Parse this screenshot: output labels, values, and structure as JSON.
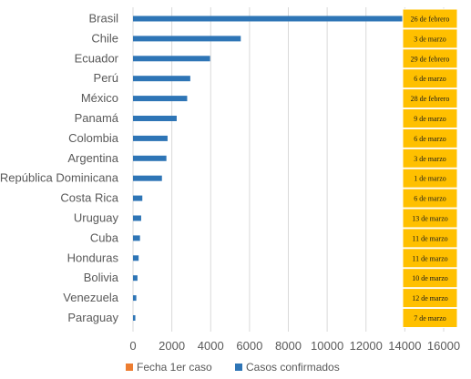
{
  "chart_data": {
    "type": "bar",
    "orientation": "horizontal",
    "categories": [
      "Brasil",
      "Chile",
      "Ecuador",
      "Perú",
      "México",
      "Panamá",
      "Colombia",
      "Argentina",
      "República Dominicana",
      "Costa Rica",
      "Uruguay",
      "Cuba",
      "Honduras",
      "Bolivia",
      "Venezuela",
      "Paraguay"
    ],
    "series": [
      {
        "name": "Casos confirmados",
        "color": "#2e75b6",
        "values": [
          14100,
          5550,
          3970,
          2950,
          2790,
          2250,
          1780,
          1720,
          1490,
          480,
          420,
          360,
          290,
          230,
          170,
          120
        ]
      },
      {
        "name": "Fecha 1er caso",
        "color": "#ed7d31",
        "cell_fill": "#ffc000",
        "values": [
          "26 de febrero",
          "3 de marzo",
          "29 de febrero",
          "6 de marzo",
          "28 de febrero",
          "9 de marzo",
          "6 de marzo",
          "3 de marzo",
          "1 de marzo",
          "6 de marzo",
          "13 de marzo",
          "11 de marzo",
          "11 de marzo",
          "10 de marzo",
          "12 de marzo",
          "7 de marzo"
        ]
      }
    ],
    "xlim": [
      0,
      16000
    ],
    "xticks": [
      "0",
      "2000",
      "4000",
      "6000",
      "8000",
      "10000",
      "12000",
      "14000",
      "16000"
    ],
    "grid": true,
    "legend": {
      "position": "bottom",
      "entries": [
        "Fecha 1er caso",
        "Casos confirmados"
      ]
    }
  }
}
